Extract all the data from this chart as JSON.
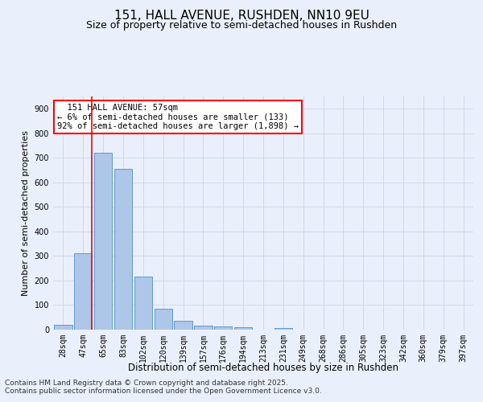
{
  "title1": "151, HALL AVENUE, RUSHDEN, NN10 9EU",
  "title2": "Size of property relative to semi-detached houses in Rushden",
  "xlabel": "Distribution of semi-detached houses by size in Rushden",
  "ylabel": "Number of semi-detached properties",
  "annotation_title": "151 HALL AVENUE: 57sqm",
  "annotation_line1": "← 6% of semi-detached houses are smaller (133)",
  "annotation_line2": "92% of semi-detached houses are larger (1,898) →",
  "footnote1": "Contains HM Land Registry data © Crown copyright and database right 2025.",
  "footnote2": "Contains public sector information licensed under the Open Government Licence v3.0.",
  "bin_labels": [
    "28sqm",
    "47sqm",
    "65sqm",
    "83sqm",
    "102sqm",
    "120sqm",
    "139sqm",
    "157sqm",
    "176sqm",
    "194sqm",
    "213sqm",
    "231sqm",
    "249sqm",
    "268sqm",
    "286sqm",
    "305sqm",
    "323sqm",
    "342sqm",
    "360sqm",
    "379sqm",
    "397sqm"
  ],
  "bar_values": [
    20,
    310,
    720,
    655,
    215,
    85,
    35,
    15,
    13,
    10,
    0,
    5,
    0,
    0,
    0,
    0,
    0,
    0,
    0,
    0,
    0
  ],
  "bar_color": "#aec6e8",
  "bar_edge_color": "#5b9bd5",
  "grid_color": "#d0d8e8",
  "vline_color": "red",
  "vline_pos": 1.42,
  "ylim": [
    0,
    950
  ],
  "yticks": [
    0,
    100,
    200,
    300,
    400,
    500,
    600,
    700,
    800,
    900
  ],
  "background_color": "#eaf0fb",
  "plot_bg_color": "#eaf0fb",
  "annotation_box_color": "white",
  "annotation_box_edge": "red",
  "title1_fontsize": 11,
  "title2_fontsize": 9,
  "xlabel_fontsize": 8.5,
  "ylabel_fontsize": 8,
  "tick_fontsize": 7,
  "annotation_fontsize": 7.5,
  "footnote_fontsize": 6.5
}
